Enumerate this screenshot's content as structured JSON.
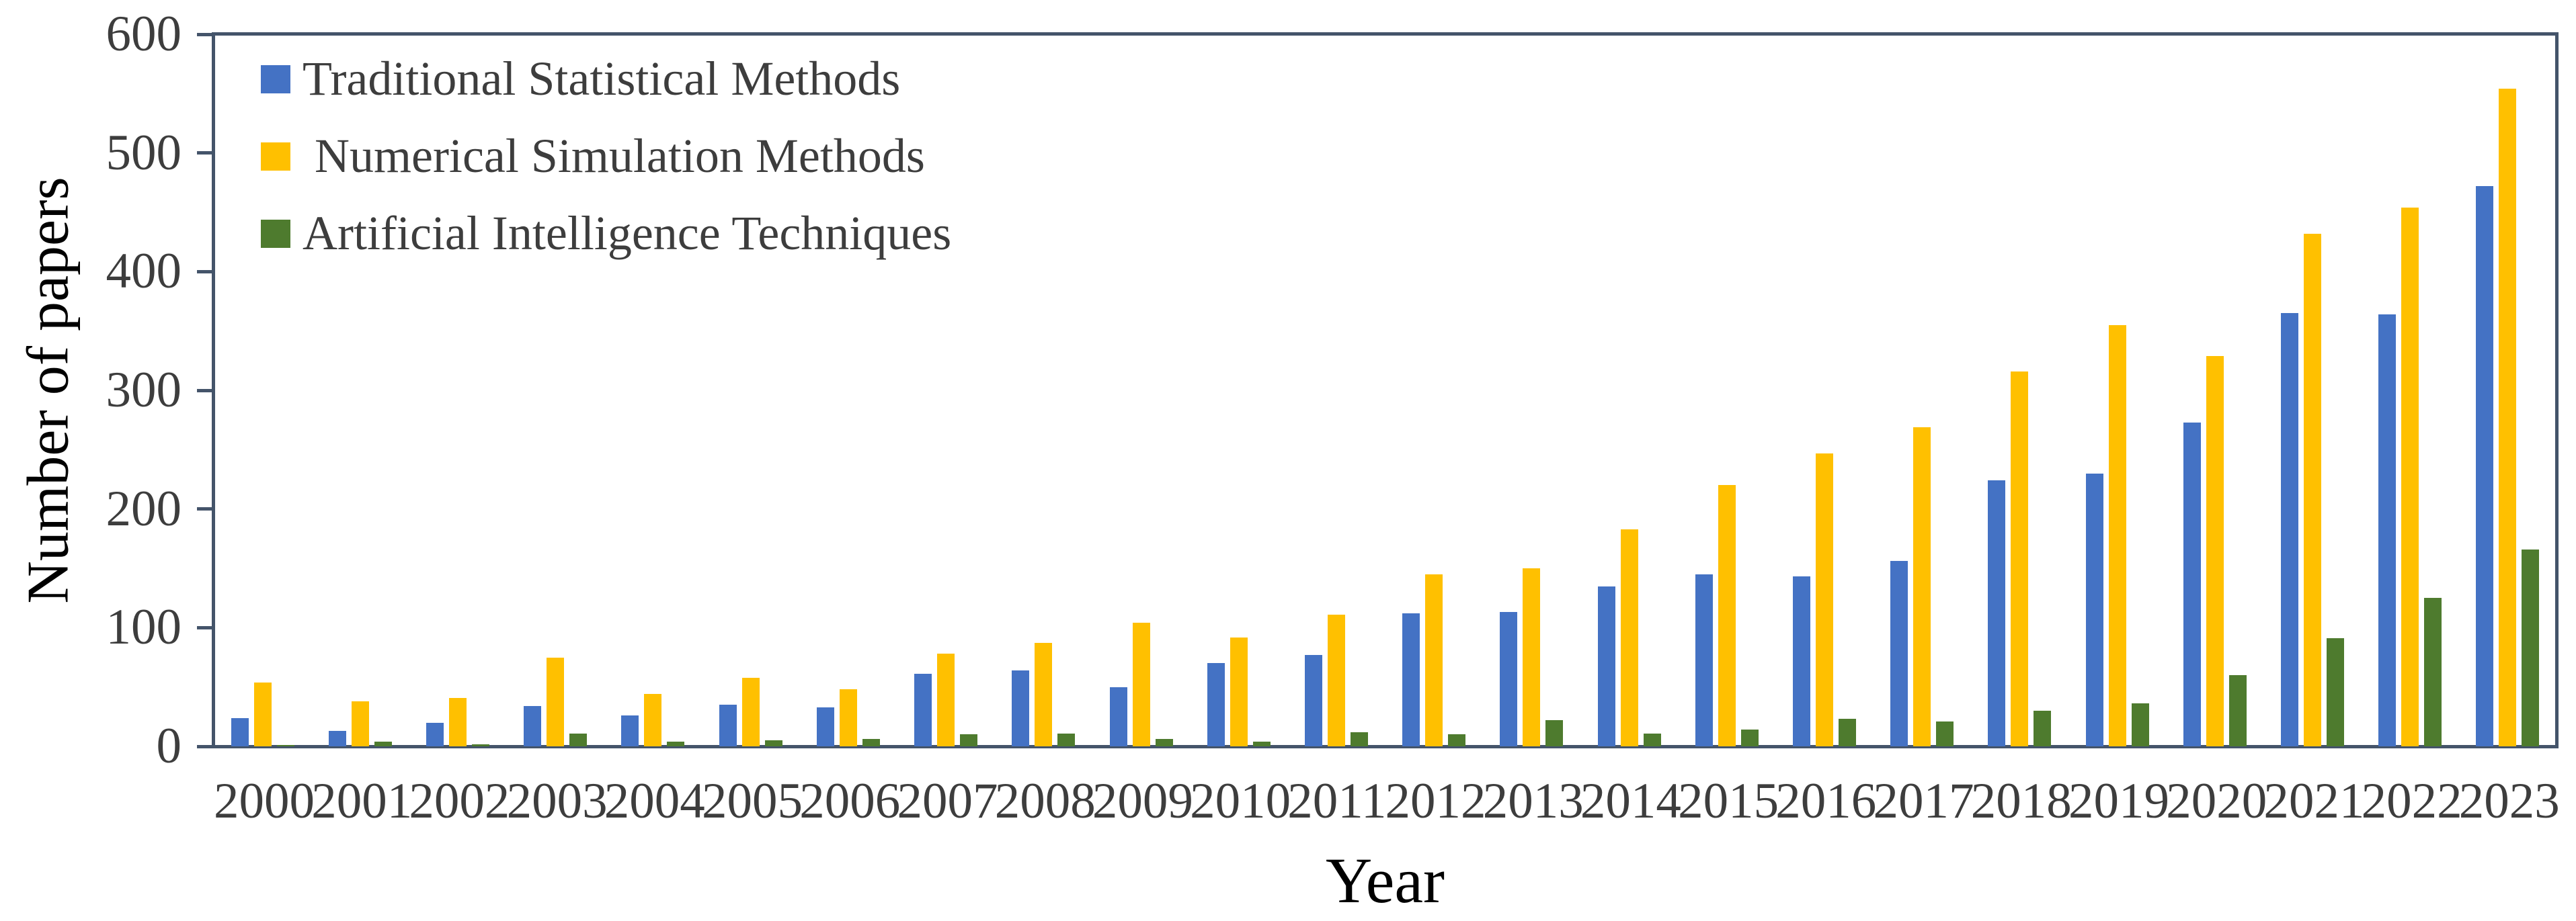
{
  "chart_data": {
    "type": "bar",
    "title": "",
    "xlabel": "Year",
    "ylabel": "Number of papers",
    "ylim": [
      0,
      600
    ],
    "ytick_interval": 100,
    "yticks": [
      0,
      100,
      200,
      300,
      400,
      500,
      600
    ],
    "grid": false,
    "legend_position": "inside-top-left",
    "categories": [
      "2000",
      "2001",
      "2002",
      "2003",
      "2004",
      "2005",
      "2006",
      "2007",
      "2008",
      "2009",
      "2010",
      "2011",
      "2012",
      "2013",
      "2014",
      "2015",
      "2016",
      "2017",
      "2018",
      "2019",
      "2020",
      "2021",
      "2022",
      "2023"
    ],
    "series": [
      {
        "name": "Traditional Statistical Methods",
        "legend_label": "Traditional Statistical Methods",
        "color": "#4472C4",
        "values": [
          24,
          13,
          20,
          34,
          26,
          35,
          33,
          61,
          64,
          50,
          70,
          77,
          112,
          113,
          135,
          145,
          143,
          156,
          224,
          230,
          273,
          365,
          364,
          472
        ]
      },
      {
        "name": "Numerical Simulation Methods",
        "legend_label": " Numerical Simulation Methods",
        "color": "#FFC000",
        "values": [
          54,
          38,
          41,
          75,
          44,
          58,
          48,
          78,
          87,
          104,
          92,
          111,
          145,
          150,
          183,
          220,
          247,
          269,
          316,
          355,
          329,
          432,
          454,
          554
        ]
      },
      {
        "name": "Artificial Intelligence Techniques",
        "legend_label": "Artificial Intelligence Techniques",
        "color": "#4E7B2E",
        "values": [
          1,
          4,
          2,
          11,
          4,
          5,
          6,
          10,
          11,
          6,
          4,
          12,
          10,
          22,
          11,
          14,
          23,
          21,
          30,
          36,
          60,
          91,
          125,
          166
        ]
      }
    ]
  },
  "colors": {
    "background": "#FFFFFF",
    "axis_box": "#44546A",
    "tick_label": "#3D3D3D",
    "axis_title": "#000000",
    "legend_text": "#3D3D3D"
  }
}
